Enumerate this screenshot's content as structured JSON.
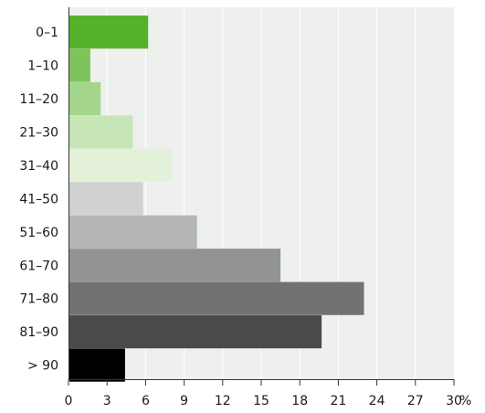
{
  "chart_data": {
    "type": "bar",
    "orientation": "horizontal",
    "categories": [
      "0–1",
      "1–10",
      "11–20",
      "21–30",
      "31–40",
      "41–50",
      "51–60",
      "61–70",
      "71–80",
      "81–90",
      "> 90"
    ],
    "values": [
      6.2,
      1.7,
      2.5,
      5.0,
      8.0,
      5.8,
      10.0,
      16.5,
      23.0,
      19.7,
      4.4
    ],
    "colors": [
      "#56b12a",
      "#7ec45c",
      "#a3d58a",
      "#c7e6b5",
      "#e3f1d9",
      "#d0d2d0",
      "#b3b6b3",
      "#919491",
      "#717371",
      "#4a4a4a",
      "#000000"
    ],
    "xlim": [
      0,
      30
    ],
    "xticks": [
      "0",
      "3",
      "6",
      "9",
      "12",
      "15",
      "18",
      "21",
      "24",
      "27",
      "30"
    ],
    "xunit": "%",
    "plot_background": "#eef0ee",
    "grid": true,
    "grid_color": "#ffffff"
  }
}
